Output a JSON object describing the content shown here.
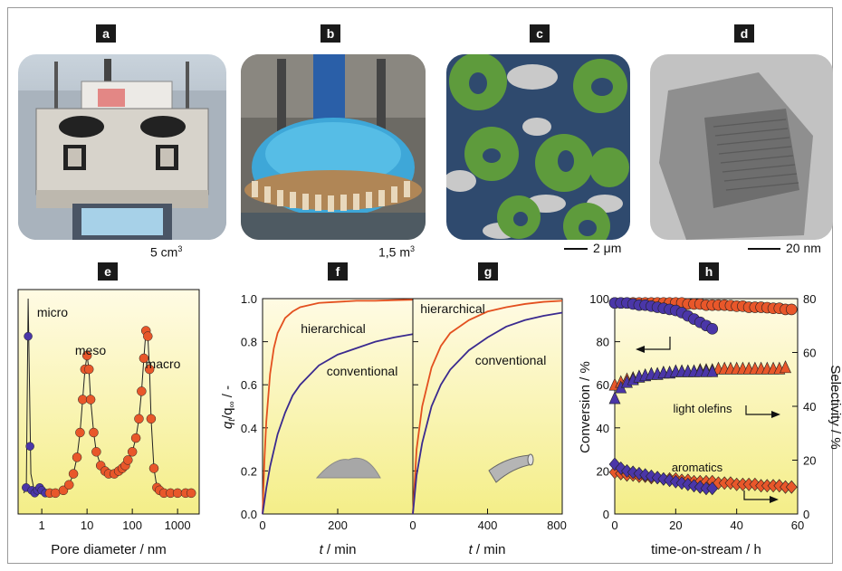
{
  "panel_labels": {
    "a": "a",
    "b": "b",
    "c": "c",
    "d": "d",
    "e": "e",
    "f": "f",
    "g": "g",
    "h": "h"
  },
  "captions": {
    "a_volume": "5 cm",
    "a_exp": "3",
    "b_volume": "1,5 m",
    "b_exp": "3",
    "c_scale": "2 μm",
    "d_scale": "20 nm"
  },
  "colors": {
    "plot_bg_top": "#fffbe0",
    "plot_bg_bottom": "#f5f08a",
    "red": "#e3501f",
    "blue": "#3a2a8f",
    "red_marker": "#e8572a",
    "blue_marker": "#4a36a8"
  },
  "chart_data": [
    {
      "panel": "e",
      "type": "scatter",
      "xlabel": "Pore diameter / nm",
      "xscale": "log",
      "xlim": [
        0.3,
        3000
      ],
      "xticks": [
        "1",
        "10",
        "100",
        "1000"
      ],
      "annotations": [
        "micro",
        "meso",
        "macro"
      ],
      "series": [
        {
          "color": "blue",
          "x": [
            0.45,
            0.5,
            0.55,
            0.6,
            0.7,
            0.8,
            0.9,
            1.0,
            1.2
          ],
          "y": [
            0.05,
            0.6,
            0.2,
            0.04,
            0.03,
            0.04,
            0.05,
            0.04,
            0.03
          ]
        },
        {
          "color": "red",
          "x": [
            1.5,
            2,
            3,
            4,
            5,
            6,
            7,
            8,
            9,
            10,
            11,
            12,
            14,
            16,
            20,
            25,
            30,
            40,
            50,
            60,
            70,
            80,
            100,
            120,
            140,
            160,
            180,
            200,
            220,
            240,
            260,
            300,
            350,
            400,
            500,
            700,
            1000,
            1500,
            2000
          ],
          "y": [
            0.03,
            0.03,
            0.04,
            0.06,
            0.1,
            0.16,
            0.25,
            0.37,
            0.48,
            0.53,
            0.48,
            0.37,
            0.25,
            0.18,
            0.13,
            0.11,
            0.1,
            0.1,
            0.11,
            0.12,
            0.13,
            0.15,
            0.18,
            0.23,
            0.3,
            0.4,
            0.52,
            0.62,
            0.6,
            0.48,
            0.3,
            0.12,
            0.05,
            0.04,
            0.03,
            0.03,
            0.03,
            0.03,
            0.03
          ]
        }
      ]
    },
    {
      "panel": "f",
      "type": "line",
      "ylabel_main": "q",
      "ylabel_sub1": "t",
      "ylabel_mid": "/q",
      "ylabel_sub2": "∞",
      "ylabel_end": " / -",
      "xlabel_var": "t",
      "xlabel_unit": " / min",
      "xlim": [
        0,
        400
      ],
      "ylim": [
        0,
        1.0
      ],
      "xticks": [
        "0",
        "200"
      ],
      "yticks": [
        "0.0",
        "0.2",
        "0.4",
        "0.6",
        "0.8",
        "1.0"
      ],
      "annotations": [
        "hierarchical",
        "conventional"
      ],
      "series": [
        {
          "name": "hierarchical",
          "color": "red",
          "x": [
            0,
            5,
            10,
            20,
            30,
            40,
            60,
            80,
            100,
            150,
            200,
            250,
            300,
            350,
            400
          ],
          "y": [
            0,
            0.25,
            0.43,
            0.65,
            0.77,
            0.84,
            0.91,
            0.94,
            0.96,
            0.98,
            0.985,
            0.99,
            0.99,
            0.993,
            0.995
          ]
        },
        {
          "name": "conventional",
          "color": "blue",
          "x": [
            0,
            10,
            20,
            40,
            60,
            80,
            100,
            150,
            200,
            250,
            300,
            350,
            400
          ],
          "y": [
            0,
            0.12,
            0.22,
            0.37,
            0.47,
            0.55,
            0.6,
            0.69,
            0.74,
            0.77,
            0.8,
            0.82,
            0.835
          ]
        }
      ]
    },
    {
      "panel": "g",
      "type": "line",
      "xlabel_var": "t",
      "xlabel_unit": " / min",
      "xlim": [
        0,
        800
      ],
      "ylim": [
        0,
        1.0
      ],
      "xticks": [
        "0",
        "400",
        "800"
      ],
      "annotations": [
        "hierarchical",
        "conventional"
      ],
      "series": [
        {
          "name": "hierarchical",
          "color": "red",
          "x": [
            0,
            20,
            50,
            100,
            150,
            200,
            300,
            400,
            500,
            600,
            700,
            800
          ],
          "y": [
            0,
            0.3,
            0.5,
            0.68,
            0.78,
            0.84,
            0.9,
            0.94,
            0.96,
            0.975,
            0.985,
            0.99
          ]
        },
        {
          "name": "conventional",
          "color": "blue",
          "x": [
            0,
            20,
            50,
            100,
            150,
            200,
            300,
            400,
            500,
            600,
            700,
            800
          ],
          "y": [
            0,
            0.18,
            0.33,
            0.5,
            0.6,
            0.67,
            0.76,
            0.82,
            0.87,
            0.9,
            0.92,
            0.935
          ]
        }
      ]
    },
    {
      "panel": "h",
      "type": "scatter",
      "xlabel": "time-on-stream / h",
      "ylabel_left": "Conversion / %",
      "ylabel_right": "Selectivity / %",
      "xlim": [
        0,
        60
      ],
      "ylim_left": [
        0,
        100
      ],
      "ylim_right": [
        0,
        80
      ],
      "xticks": [
        "0",
        "20",
        "40",
        "60"
      ],
      "yticks_left": [
        "0",
        "20",
        "40",
        "60",
        "80",
        "100"
      ],
      "yticks_right": [
        "0",
        "20",
        "40",
        "60",
        "80"
      ],
      "annotations": [
        "light olefins",
        "aromatics"
      ],
      "series": [
        {
          "name": "conversion_hier",
          "color": "red",
          "marker": "circle",
          "axis": "left",
          "x": [
            0,
            2,
            4,
            6,
            8,
            10,
            12,
            14,
            16,
            18,
            20,
            22,
            24,
            26,
            28,
            30,
            32,
            34,
            36,
            38,
            40,
            42,
            44,
            46,
            48,
            50,
            52,
            54,
            56,
            58
          ],
          "y": [
            98,
            98,
            98,
            98,
            98,
            98,
            98,
            98,
            98,
            98,
            98,
            98,
            97.5,
            97.5,
            97.5,
            97,
            97,
            97,
            97,
            96.8,
            96.5,
            96.5,
            96,
            96,
            96,
            95.8,
            95.5,
            95.5,
            95,
            95
          ]
        },
        {
          "name": "conversion_conv",
          "color": "blue",
          "marker": "circle",
          "axis": "left",
          "x": [
            0,
            2,
            4,
            6,
            8,
            10,
            12,
            14,
            16,
            18,
            20,
            22,
            24,
            26,
            28,
            30,
            32
          ],
          "y": [
            98,
            98,
            98,
            97.5,
            97,
            97,
            96.5,
            96,
            95.5,
            95,
            94.5,
            93.5,
            92,
            90.5,
            89,
            87.5,
            86
          ]
        },
        {
          "name": "olefins_hier",
          "color": "red",
          "marker": "triangle",
          "axis": "right",
          "x": [
            0,
            2,
            4,
            6,
            8,
            10,
            12,
            14,
            16,
            18,
            20,
            22,
            24,
            26,
            28,
            30,
            32,
            34,
            36,
            38,
            40,
            42,
            44,
            46,
            48,
            50,
            52,
            54,
            56
          ],
          "y": [
            48,
            49,
            50,
            50.5,
            51,
            51.5,
            52,
            52,
            52.5,
            52.5,
            53,
            53,
            53,
            53,
            53.5,
            53.5,
            53.5,
            54,
            54,
            54,
            54,
            54,
            54,
            54,
            54,
            54,
            54,
            54,
            54.5
          ]
        },
        {
          "name": "olefins_conv",
          "color": "blue",
          "marker": "triangle",
          "axis": "right",
          "x": [
            0,
            2,
            4,
            6,
            8,
            10,
            12,
            14,
            16,
            18,
            20,
            22,
            24,
            26,
            28,
            30,
            32
          ],
          "y": [
            43,
            47,
            49,
            50,
            51,
            51.5,
            52,
            52,
            52.5,
            52.5,
            53,
            53,
            53,
            53,
            53,
            53,
            53
          ]
        },
        {
          "name": "aromatics_hier",
          "color": "red",
          "marker": "diamond",
          "axis": "right",
          "x": [
            0,
            2,
            4,
            6,
            8,
            10,
            12,
            14,
            16,
            18,
            20,
            22,
            24,
            26,
            28,
            30,
            32,
            34,
            36,
            38,
            40,
            42,
            44,
            46,
            48,
            50,
            52,
            54,
            56,
            58
          ],
          "y": [
            15.5,
            15,
            14.5,
            14.5,
            14,
            14,
            13.5,
            13.5,
            13,
            13,
            13,
            12.5,
            12.5,
            12,
            12,
            12,
            12,
            11.5,
            11.5,
            11.5,
            11,
            11,
            11,
            11,
            10.5,
            10.5,
            10.5,
            10.5,
            10,
            10
          ]
        },
        {
          "name": "aromatics_conv",
          "color": "blue",
          "marker": "diamond",
          "axis": "right",
          "x": [
            0,
            2,
            4,
            6,
            8,
            10,
            12,
            14,
            16,
            18,
            20,
            22,
            24,
            26,
            28,
            30,
            32
          ],
          "y": [
            18.5,
            17,
            16,
            15.5,
            15,
            14.5,
            14,
            13.5,
            13,
            12.5,
            12,
            11.5,
            11,
            10.5,
            10,
            9.5,
            9.5
          ]
        }
      ]
    }
  ]
}
